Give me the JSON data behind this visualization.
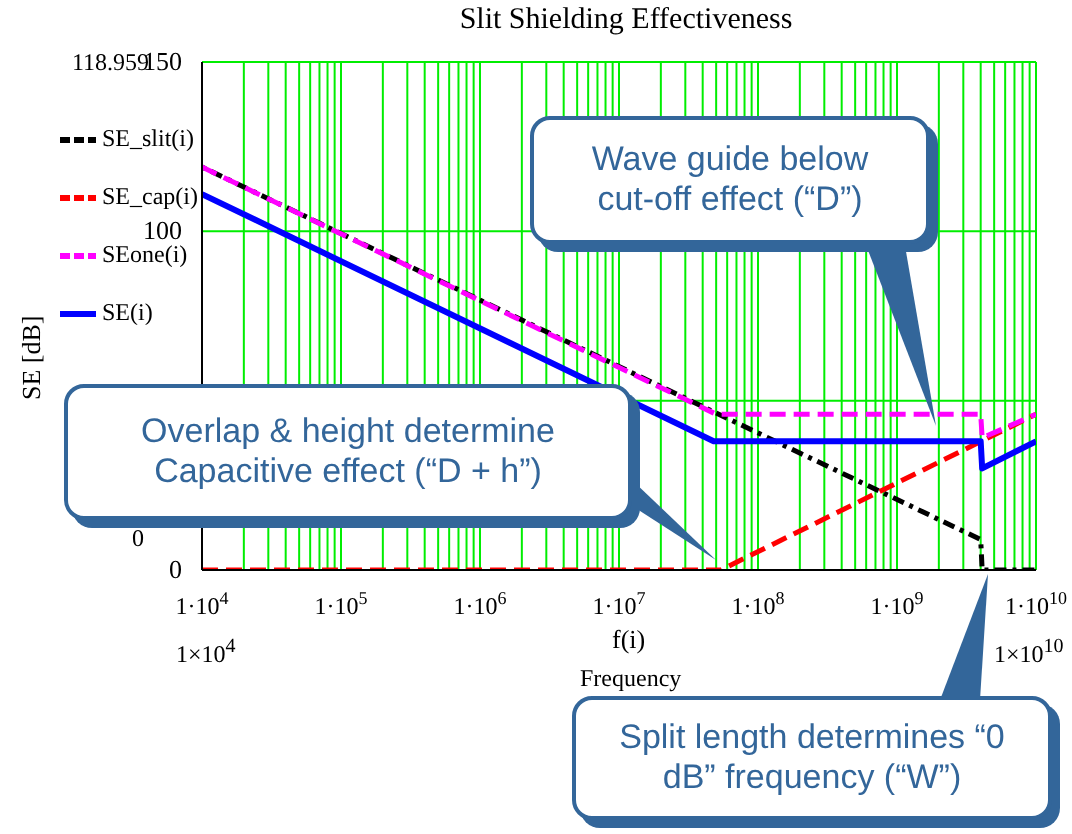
{
  "chart_data": {
    "type": "line",
    "title": "Slit Shielding Effectiveness",
    "xlabel": "f(i)",
    "ylabel": "SE [dB]",
    "log": "x",
    "grid": true,
    "legend": "left",
    "xlim": [
      10000,
      10000000000
    ],
    "xticks": [
      {
        "value": 10000,
        "label": "1·10$^{4}$"
      },
      {
        "value": 20000,
        "label": null
      },
      {
        "value": 30000,
        "label": null
      },
      {
        "value": 40000,
        "label": null
      },
      {
        "value": 50000,
        "label": null
      },
      {
        "value": 60000,
        "label": null
      },
      {
        "value": 70000,
        "label": null
      },
      {
        "value": 80000,
        "label": null
      },
      {
        "value": 90000,
        "label": null
      },
      {
        "value": 100000,
        "label": "1·10$^{5}$"
      },
      {
        "value": 200000,
        "label": null
      },
      {
        "value": 300000,
        "label": null
      },
      {
        "value": 400000,
        "label": null
      },
      {
        "value": 500000,
        "label": null
      },
      {
        "value": 600000,
        "label": null
      },
      {
        "value": 700000,
        "label": null
      },
      {
        "value": 800000,
        "label": null
      },
      {
        "value": 900000,
        "label": null
      },
      {
        "value": 1000000,
        "label": "1·10$^{6}$"
      },
      {
        "value": 2000000,
        "label": null
      },
      {
        "value": 3000000,
        "label": null
      },
      {
        "value": 4000000,
        "label": null
      },
      {
        "value": 5000000,
        "label": null
      },
      {
        "value": 6000000,
        "label": null
      },
      {
        "value": 7000000,
        "label": null
      },
      {
        "value": 8000000,
        "label": null
      },
      {
        "value": 9000000,
        "label": null
      },
      {
        "value": 10000000,
        "label": "1·10$^{7}$"
      },
      {
        "value": 20000000,
        "label": null
      },
      {
        "value": 30000000,
        "label": null
      },
      {
        "value": 40000000,
        "label": null
      },
      {
        "value": 50000000,
        "label": null
      },
      {
        "value": 60000000,
        "label": null
      },
      {
        "value": 70000000,
        "label": null
      },
      {
        "value": 80000000,
        "label": null
      },
      {
        "value": 90000000,
        "label": null
      },
      {
        "value": 100000000,
        "label": "1·10$^{8}$"
      },
      {
        "value": 200000000,
        "label": null
      },
      {
        "value": 300000000,
        "label": null
      },
      {
        "value": 400000000,
        "label": null
      },
      {
        "value": 500000000,
        "label": null
      },
      {
        "value": 600000000,
        "label": null
      },
      {
        "value": 700000000,
        "label": null
      },
      {
        "value": 800000000,
        "label": null
      },
      {
        "value": 900000000,
        "label": null
      },
      {
        "value": 1000000000,
        "label": "1·10$^{9}$"
      },
      {
        "value": 2000000000,
        "label": null
      },
      {
        "value": 3000000000,
        "label": null
      },
      {
        "value": 4000000000,
        "label": null
      },
      {
        "value": 5000000000,
        "label": null
      },
      {
        "value": 6000000000,
        "label": null
      },
      {
        "value": 7000000000,
        "label": null
      },
      {
        "value": 8000000000,
        "label": null
      },
      {
        "value": 9000000000,
        "label": null
      },
      {
        "value": 10000000000,
        "label": "1·10$^{10}$"
      }
    ],
    "ylim": [
      0,
      150
    ],
    "yticks": [
      0,
      {
        "value": 50,
        "label": null
      },
      100,
      150
    ],
    "series": [
      {
        "name": "SE_slit(i)",
        "color": "#000000",
        "line_style": "dotted",
        "x": [
          10000,
          4000000000,
          4100000000,
          10000000000
        ],
        "values": [
          119,
          9,
          0,
          0
        ]
      },
      {
        "name": "SE_cap(i)",
        "color": "#ff0000",
        "line_style": "dashed",
        "x": [
          10000,
          54000000,
          10000000000
        ],
        "values": [
          0,
          0,
          46
        ]
      },
      {
        "name": "SEone(i)",
        "color": "#ff00ff",
        "line_style": "dashed",
        "x": [
          10000,
          50000000,
          4000000000,
          4100000000,
          10000000000
        ],
        "values": [
          119,
          46,
          46,
          39,
          46
        ]
      },
      {
        "name": "SE(i)",
        "color": "#0000ff",
        "line_style": "solid",
        "x": [
          10000,
          48000000,
          4000000000,
          4100000000,
          10000000000
        ],
        "values": [
          111,
          38,
          38,
          30,
          38
        ]
      }
    ],
    "annotations": [
      "118.959",
      "0",
      "1×10$^{4}$",
      "1×10$^{10}$",
      "Frequency",
      "Wave guide below cut-off effect (“D”)",
      "Overlap & height determine Capacitive effect (“D + h”)",
      "Split length determines “0 dB” frequency (“W”)"
    ]
  }
}
